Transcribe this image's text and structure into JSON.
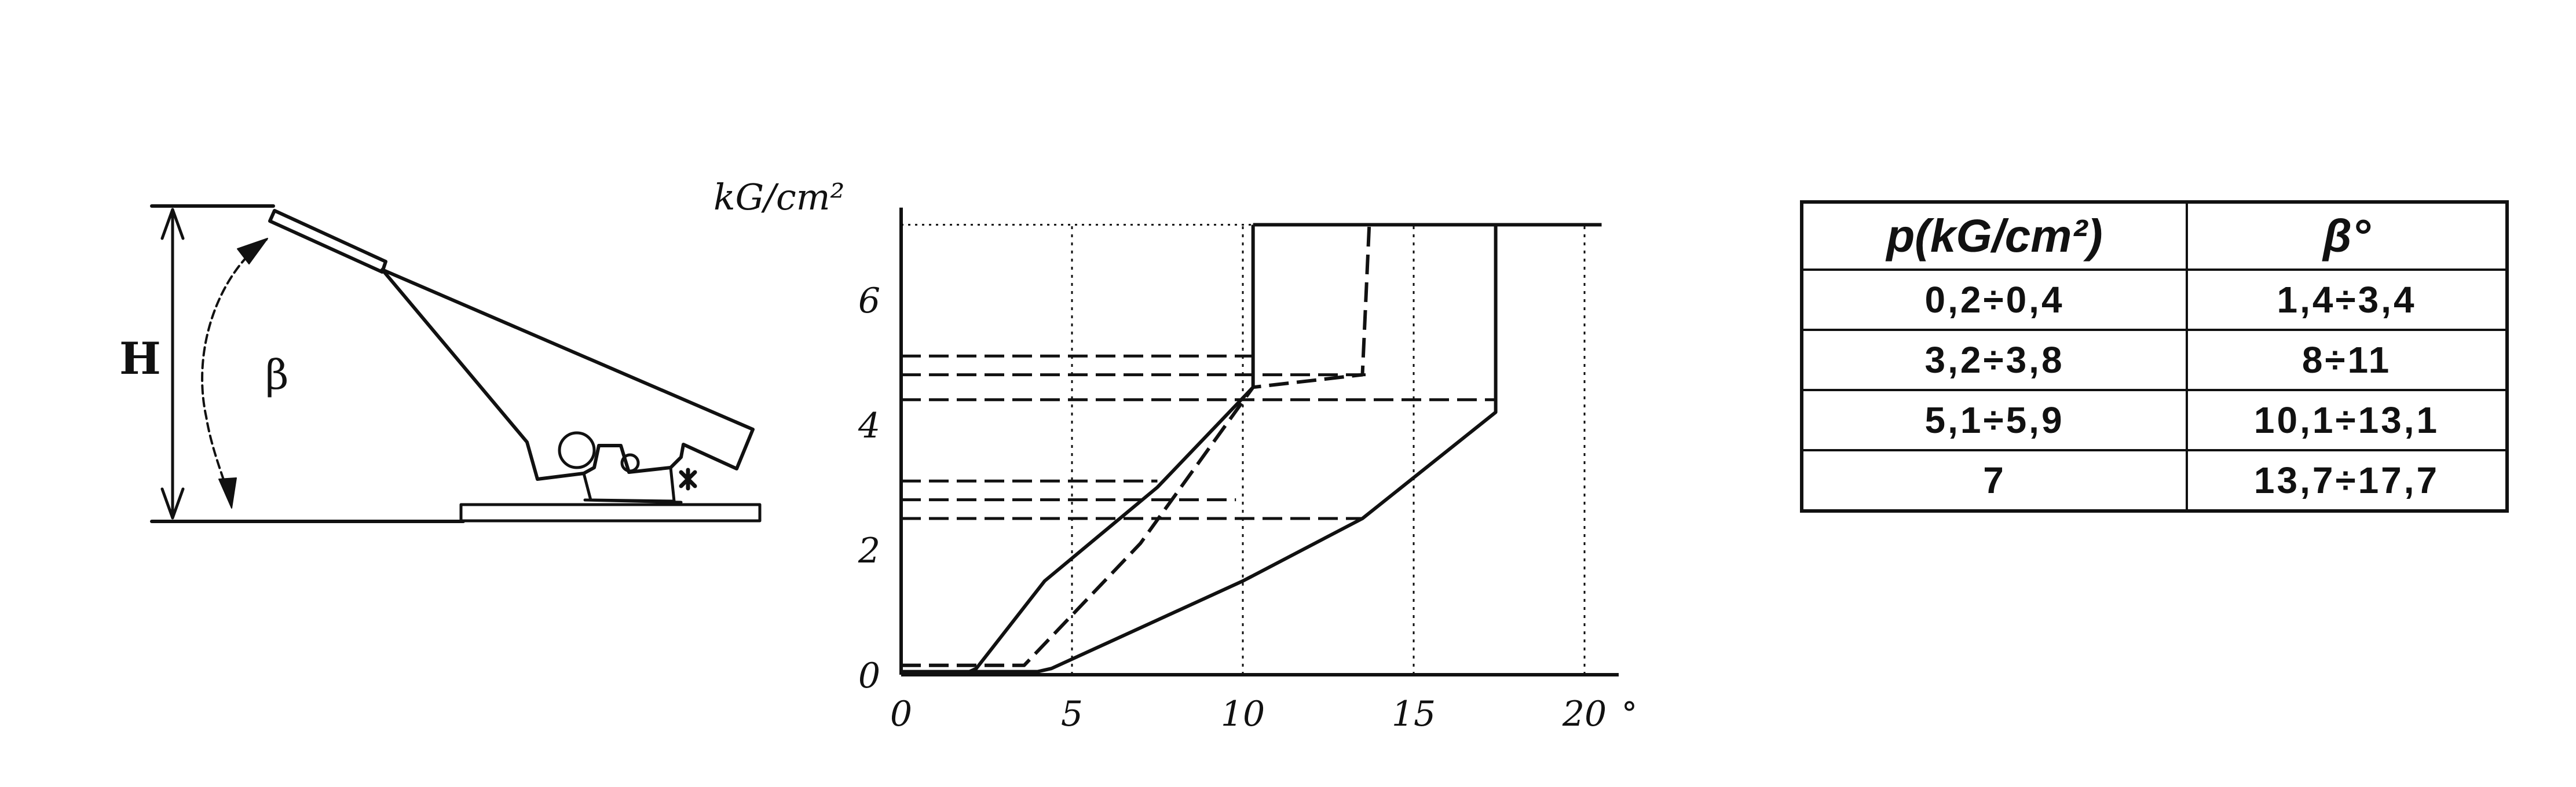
{
  "pedal_diagram": {
    "height_label": "H",
    "angle_label": "β"
  },
  "chart_data": {
    "type": "line",
    "title": "",
    "ylabel": "kG/cm²",
    "xlabel": "",
    "x_unit": "°",
    "xlim": [
      0,
      21
    ],
    "ylim": [
      0,
      7.4
    ],
    "x_ticks": [
      "0",
      "5",
      "10",
      "15",
      "20"
    ],
    "y_ticks": [
      "0",
      "2",
      "4",
      "6"
    ],
    "grid": "dotted vertical at 5, 10, 15, 20",
    "series": [
      {
        "style": "solid",
        "points": [
          [
            0,
            0
          ],
          [
            1.8,
            0
          ],
          [
            2.2,
            0.1
          ],
          [
            4.2,
            1.5
          ],
          [
            7.5,
            3.0
          ],
          [
            10.3,
            4.6
          ],
          [
            10.3,
            7.2
          ]
        ]
      },
      {
        "style": "dashed",
        "points": [
          [
            0,
            0.15
          ],
          [
            3.6,
            0.15
          ],
          [
            7.0,
            2.1
          ],
          [
            10.3,
            4.6
          ],
          [
            13.5,
            4.8
          ],
          [
            13.7,
            7.2
          ]
        ]
      },
      {
        "style": "solid",
        "points": [
          [
            0,
            0.05
          ],
          [
            4.0,
            0.05
          ],
          [
            4.4,
            0.1
          ],
          [
            10.0,
            1.5
          ],
          [
            13.5,
            2.5
          ],
          [
            17.4,
            4.2
          ],
          [
            17.4,
            7.2
          ]
        ]
      }
    ],
    "reference_lines": {
      "style": "dashed",
      "levels": [
        {
          "y": 5.1,
          "x_end": 10.3
        },
        {
          "y": 4.8,
          "x_end": 13.7
        },
        {
          "y": 4.4,
          "x_end": 17.4
        },
        {
          "y": 3.1,
          "x_end": 7.5
        },
        {
          "y": 2.8,
          "x_end": 9.8
        },
        {
          "y": 2.5,
          "x_end": 13.5
        }
      ]
    }
  },
  "table": {
    "headers": [
      "p(kG/cm²)",
      "β°"
    ],
    "rows": [
      [
        "0,2÷0,4",
        "1,4÷3,4"
      ],
      [
        "3,2÷3,8",
        "8÷11"
      ],
      [
        "5,1÷5,9",
        "10,1÷13,1"
      ],
      [
        "7",
        "13,7÷17,7"
      ]
    ]
  }
}
